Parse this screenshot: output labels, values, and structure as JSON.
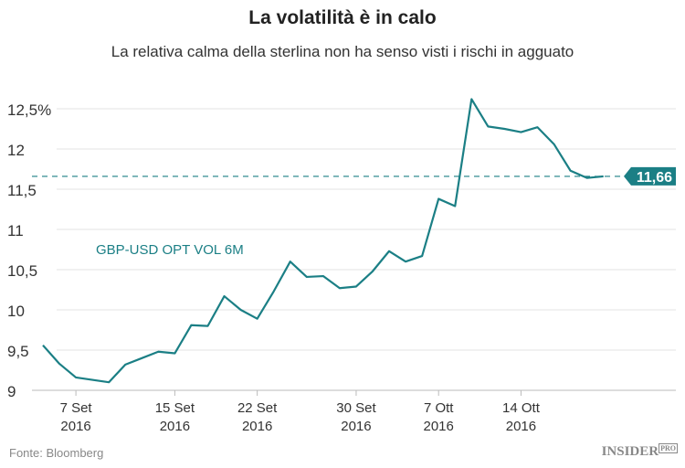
{
  "title": "La volatilità è in calo",
  "subtitle": "La relativa calma della sterlina non ha senso visti i rischi in agguato",
  "source": "Fonte: Bloomberg",
  "logo": "INSIDER PRO",
  "colors": {
    "line": "#1b7f85",
    "grid": "#e3e3e3"
  },
  "chart_data": {
    "type": "line",
    "ylim": [
      9,
      12.7
    ],
    "yticks": [
      {
        "v": 9,
        "label": "9"
      },
      {
        "v": 9.5,
        "label": "9,5"
      },
      {
        "v": 10,
        "label": "10"
      },
      {
        "v": 10.5,
        "label": "10,5"
      },
      {
        "v": 11,
        "label": "11"
      },
      {
        "v": 11.5,
        "label": "11,5"
      },
      {
        "v": 12,
        "label": "12"
      },
      {
        "v": 12.5,
        "label": "12,5%"
      }
    ],
    "xticks": [
      {
        "date": "2016-09-07",
        "label": "7 Set",
        "year": "2016"
      },
      {
        "date": "2016-09-15",
        "label": "15 Set",
        "year": "2016"
      },
      {
        "date": "2016-09-22",
        "label": "22 Set",
        "year": "2016"
      },
      {
        "date": "2016-09-30",
        "label": "30 Set",
        "year": "2016"
      },
      {
        "date": "2016-10-07",
        "label": "7 Ott",
        "year": "2016"
      },
      {
        "date": "2016-10-14",
        "label": "14 Ott",
        "year": "2016"
      }
    ],
    "grid": true,
    "series": [
      {
        "name": "GBP-USD OPT VOL 6M",
        "x": [
          "2016-09-05",
          "2016-09-06",
          "2016-09-07",
          "2016-09-08",
          "2016-09-09",
          "2016-09-12",
          "2016-09-13",
          "2016-09-14",
          "2016-09-15",
          "2016-09-16",
          "2016-09-19",
          "2016-09-20",
          "2016-09-21",
          "2016-09-22",
          "2016-09-23",
          "2016-09-26",
          "2016-09-27",
          "2016-09-28",
          "2016-09-29",
          "2016-09-30",
          "2016-10-03",
          "2016-10-04",
          "2016-10-05",
          "2016-10-06",
          "2016-10-07",
          "2016-10-10",
          "2016-10-11",
          "2016-10-12",
          "2016-10-13",
          "2016-10-14",
          "2016-10-17",
          "2016-10-18",
          "2016-10-19",
          "2016-10-20",
          "2016-10-21"
        ],
        "values": [
          9.56,
          9.33,
          9.16,
          9.13,
          9.1,
          9.32,
          9.4,
          9.48,
          9.46,
          9.81,
          9.8,
          10.17,
          10.0,
          9.89,
          10.23,
          10.6,
          10.41,
          10.42,
          10.27,
          10.29,
          10.48,
          10.73,
          10.6,
          10.67,
          11.38,
          11.29,
          12.62,
          12.28,
          12.25,
          12.21,
          12.27,
          12.06,
          11.73,
          11.64,
          11.66
        ]
      }
    ],
    "last_value_label": "11,66",
    "last_value": 11.66
  }
}
